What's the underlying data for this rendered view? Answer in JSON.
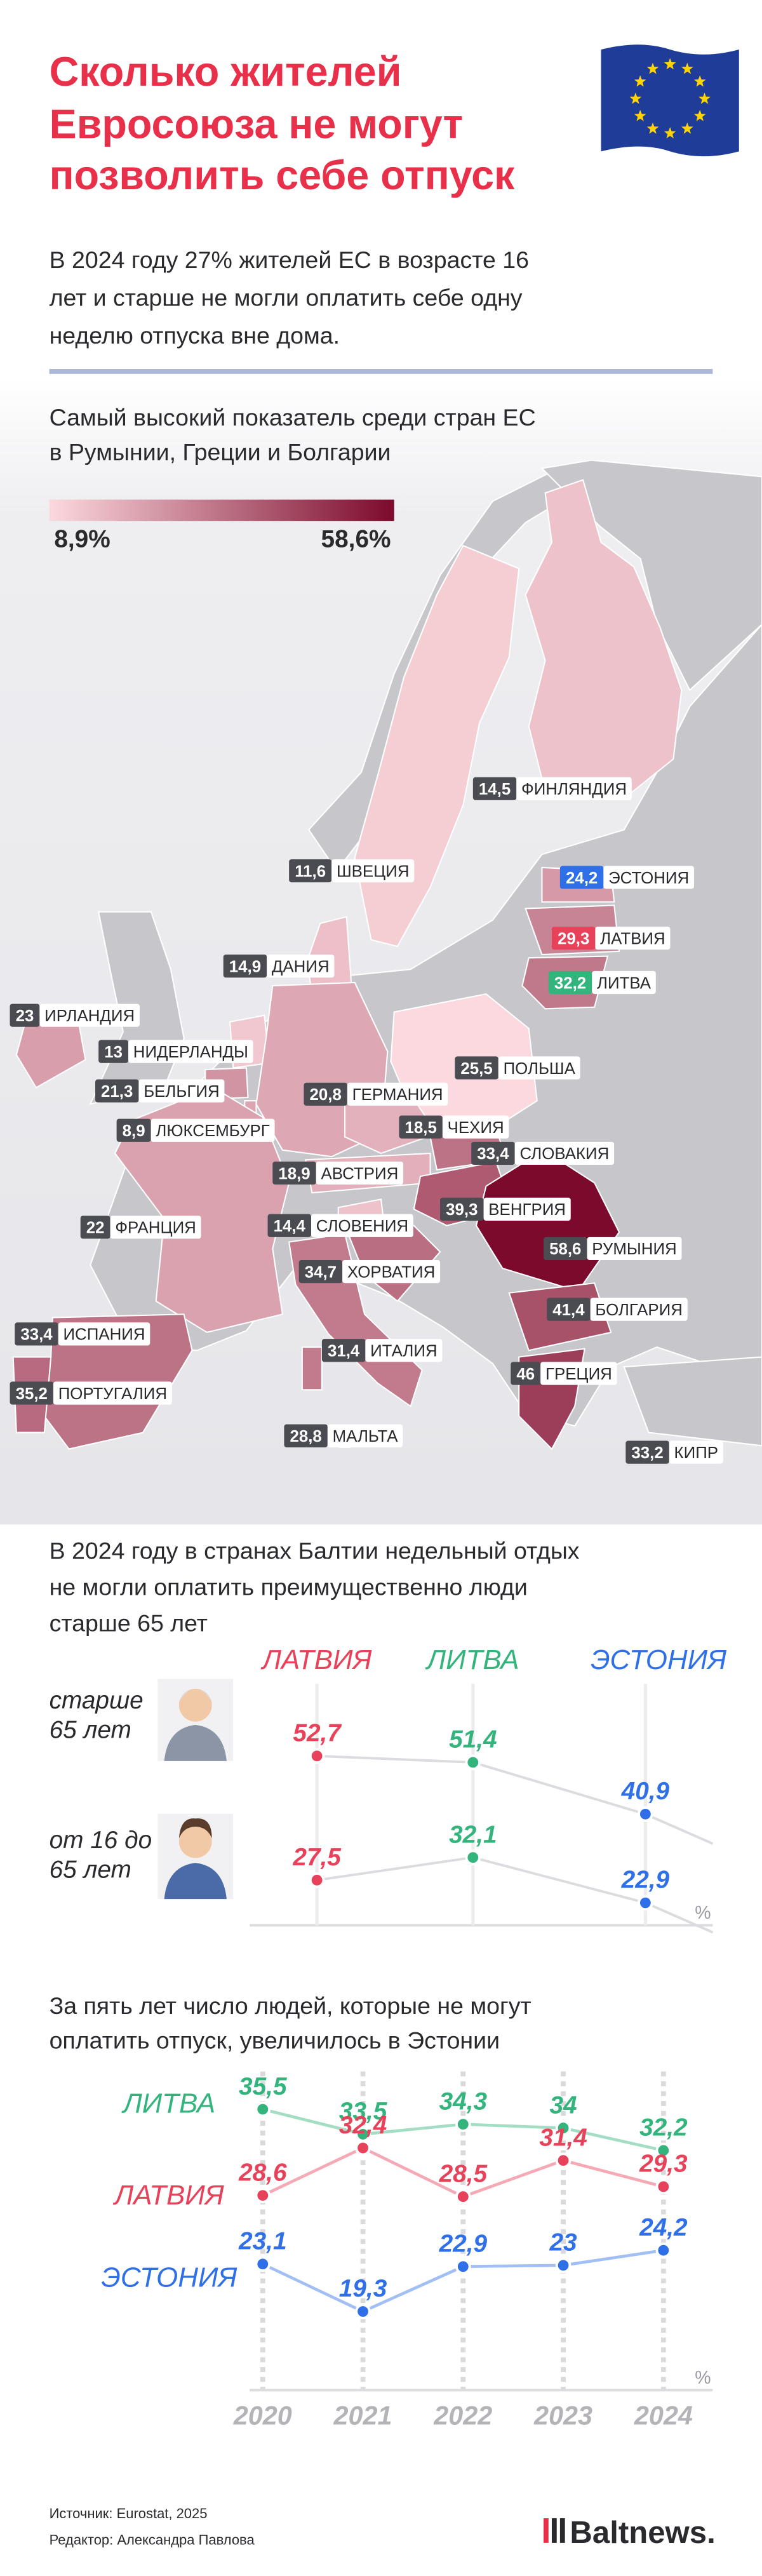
{
  "header": {
    "title": [
      "Сколько жителей",
      "Евросоюза не могут",
      "позволить себе отпуск"
    ],
    "lead": [
      "В 2024 году 27% жителей ЕС в возрасте 16",
      "лет и старше не могли оплатить себе одну",
      "неделю отпуска вне дома."
    ]
  },
  "chart_data": [
    {
      "type": "map",
      "title": [
        "Самый высокий показатель среди стран ЕС",
        "в Румынии, Греции и Болгарии"
      ],
      "color_scale": {
        "min": {
          "value": 8.9,
          "label": "8,9%"
        },
        "max": {
          "value": 58.6,
          "label": "58,6%"
        },
        "colors": [
          "#fcd9de",
          "#7c0a2c"
        ]
      },
      "categories": [
        "ФИНЛЯНДИЯ",
        "ШВЕЦИЯ",
        "ЭСТОНИЯ",
        "ЛАТВИЯ",
        "ЛИТВА",
        "ДАНИЯ",
        "ИРЛАНДИЯ",
        "НИДЕРЛАНДЫ",
        "ПОЛЬША",
        "БЕЛЬГИЯ",
        "ГЕРМАНИЯ",
        "ЛЮКСЕМБУРГ",
        "ЧЕХИЯ",
        "СЛОВАКИЯ",
        "АВСТРИЯ",
        "ВЕНГРИЯ",
        "ФРАНЦИЯ",
        "СЛОВЕНИЯ",
        "РУМЫНИЯ",
        "ХОРВАТИЯ",
        "БОЛГАРИЯ",
        "ИСПАНИЯ",
        "ИТАЛИЯ",
        "ГРЕЦИЯ",
        "ПОРТУГАЛИЯ",
        "МАЛЬТА",
        "КИПР"
      ],
      "values": [
        14.5,
        11.6,
        24.2,
        29.3,
        32.2,
        14.9,
        23,
        13,
        25.5,
        21.3,
        20.8,
        8.9,
        18.5,
        33.4,
        18.9,
        39.3,
        22,
        14.4,
        58.6,
        34.7,
        41.4,
        33.4,
        31.4,
        46,
        35.2,
        28.8,
        33.2
      ],
      "value_labels": [
        "14,5",
        "11,6",
        "24,2",
        "29,3",
        "32,2",
        "14,9",
        "23",
        "13",
        "25,5",
        "21,3",
        "20,8",
        "8,9",
        "18,5",
        "33,4",
        "18,9",
        "39,3",
        "22",
        "14,4",
        "58,6",
        "34,7",
        "41,4",
        "33,4",
        "31,4",
        "46",
        "35,2",
        "28,8",
        "33,2"
      ],
      "label_colors": [
        null,
        null,
        "#2f6fe8",
        "#e8415a",
        "#33b47c",
        null,
        null,
        null,
        null,
        null,
        null,
        null,
        null,
        null,
        null,
        null,
        null,
        null,
        null,
        null,
        null,
        null,
        null,
        null,
        null,
        null,
        null
      ]
    },
    {
      "type": "dot",
      "title": [
        "В 2024 году в странах Балтии недельный отдых",
        "не могли оплатить преимущественно люди",
        "старше 65 лет"
      ],
      "categories": [
        "ЛАТВИЯ",
        "ЛИТВА",
        "ЭСТОНИЯ"
      ],
      "colors": [
        "#e8415a",
        "#33b47c",
        "#2f6fe8"
      ],
      "series": [
        {
          "name": [
            "старше",
            "65 лет"
          ],
          "values": [
            52.7,
            51.4,
            40.9
          ],
          "value_labels": [
            "52,7",
            "51,4",
            "40,9"
          ]
        },
        {
          "name": [
            "от 16 до",
            "65 лет"
          ],
          "values": [
            27.5,
            32.1,
            22.9
          ],
          "value_labels": [
            "27,5",
            "32,1",
            "22,9"
          ]
        }
      ],
      "unit": "%"
    },
    {
      "type": "line",
      "title": [
        "За пять лет число людей, которые не могут",
        "оплатить отпуск, увеличилось в Эстонии"
      ],
      "categories": [
        "2020",
        "2021",
        "2022",
        "2023",
        "2024"
      ],
      "ylim": [
        13,
        38
      ],
      "series": [
        {
          "name": "ЛИТВА",
          "color": "#33b47c",
          "values": [
            35.5,
            33.5,
            34.3,
            34,
            32.2
          ],
          "value_labels": [
            "35,5",
            "33,5",
            "34,3",
            "34",
            "32,2"
          ]
        },
        {
          "name": "ЛАТВИЯ",
          "color": "#e8415a",
          "values": [
            28.6,
            32.4,
            28.5,
            31.4,
            29.3
          ],
          "value_labels": [
            "28,6",
            "32,4",
            "28,5",
            "31,4",
            "29,3"
          ]
        },
        {
          "name": "ЭСТОНИЯ",
          "color": "#2f6fe8",
          "values": [
            23.1,
            19.3,
            22.9,
            23,
            24.2
          ],
          "value_labels": [
            "23,1",
            "19,3",
            "22,9",
            "23",
            "24,2"
          ]
        }
      ],
      "unit": "%"
    }
  ],
  "footer": {
    "source": "Источник: Eurostat, 2025",
    "editor": "Редактор: Александра Павлова",
    "logo": "Baltnews."
  }
}
